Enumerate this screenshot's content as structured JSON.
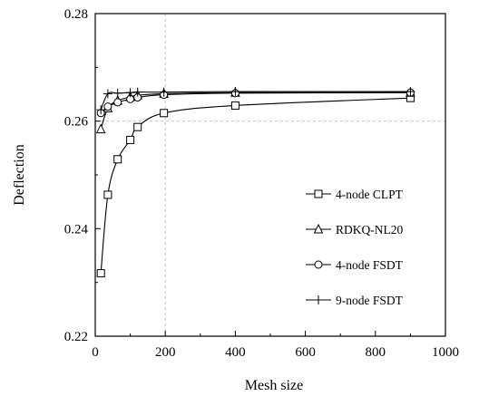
{
  "chart_data": {
    "type": "line",
    "xlabel": "Mesh size",
    "ylabel": "Deflection",
    "xlim": [
      0,
      1000
    ],
    "ylim": [
      0.22,
      0.28
    ],
    "x_ticks": [
      0,
      200,
      400,
      600,
      800,
      1000
    ],
    "y_ticks": [
      0.22,
      0.24,
      0.26,
      0.28
    ],
    "x_tick_labels": [
      "0",
      "200",
      "400",
      "600",
      "800",
      "1000"
    ],
    "y_tick_labels": [
      "0.22",
      "0.24",
      "0.26",
      "0.28"
    ],
    "grid": "dashed gridlines at x=200 and y=0.26",
    "legend_position": "right",
    "series": [
      {
        "name": "4-node CLPT",
        "marker": "square",
        "x": [
          16,
          36,
          64,
          100,
          121,
          196,
          400,
          900
        ],
        "y": [
          0.2317,
          0.2463,
          0.2529,
          0.2565,
          0.2589,
          0.2615,
          0.2629,
          0.2643
        ]
      },
      {
        "name": "RDKQ-NL20",
        "marker": "triangle",
        "x": [
          16,
          36,
          64,
          100,
          121,
          196,
          400,
          900
        ],
        "y": [
          0.2585,
          0.2624,
          0.2638,
          0.2645,
          0.2648,
          0.2651,
          0.2653,
          0.2653
        ]
      },
      {
        "name": "4-node FSDT",
        "marker": "circle",
        "x": [
          16,
          36,
          64,
          100,
          121,
          196,
          400,
          900
        ],
        "y": [
          0.2615,
          0.2627,
          0.2635,
          0.2641,
          0.2644,
          0.2649,
          0.2652,
          0.2653
        ]
      },
      {
        "name": "9-node FSDT",
        "marker": "plus",
        "x": [
          16,
          36,
          64,
          100,
          121,
          196,
          400,
          900
        ],
        "y": [
          0.2621,
          0.2651,
          0.2652,
          0.2653,
          0.2654,
          0.2654,
          0.2655,
          0.2655
        ]
      }
    ]
  }
}
